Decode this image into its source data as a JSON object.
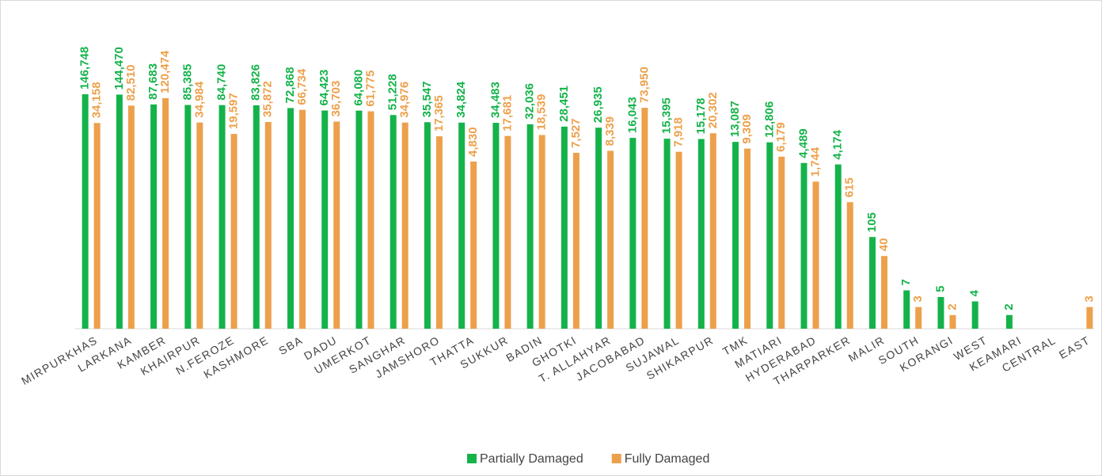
{
  "chart_data": {
    "type": "bar",
    "log_scale": true,
    "ylim": [
      1,
      10000000
    ],
    "legend": "bottom",
    "categories": [
      "MIRPURKHAS",
      "LARKANA",
      "KAMBER",
      "KHAIRPUR",
      "N.FEROZE",
      "KASHMORE",
      "SBA",
      "DADU",
      "UMERKOT",
      "SANGHAR",
      "JAMSHORO",
      "THATTA",
      "SUKKUR",
      "BADIN",
      "GHOTKI",
      "T. ALLAHYAR",
      "JACOBABAD",
      "SUJAWAL",
      "SHIKARPUR",
      "TMK",
      "MATIARI",
      "HYDERABAD",
      "THARPARKER",
      "MALIR",
      "SOUTH",
      "KORANGI",
      "WEST",
      "KEAMARI",
      "CENTRAL",
      "EAST"
    ],
    "series": [
      {
        "name": "Partially Damaged",
        "color": "#14b34a",
        "values": [
          146748,
          144470,
          87683,
          85385,
          84740,
          83826,
          72868,
          64423,
          64080,
          51228,
          35547,
          34824,
          34483,
          32036,
          28451,
          26935,
          16043,
          15395,
          15178,
          13087,
          12806,
          4489,
          4174,
          105,
          7,
          5,
          4,
          2,
          null,
          null
        ],
        "value_labels": [
          "146,748",
          "144,470",
          "87,683",
          "85,385",
          "84,740",
          "83,826",
          "72,868",
          "64,423",
          "64,080",
          "51,228",
          "35,547",
          "34,824",
          "34,483",
          "32,036",
          "28,451",
          "26,935",
          "16,043",
          "15,395",
          "15,178",
          "13,087",
          "12,806",
          "4,489",
          "4,174",
          "105",
          "7",
          "5",
          "4",
          "2",
          null,
          null
        ]
      },
      {
        "name": "Fully Damaged",
        "color": "#eda04b",
        "values": [
          34158,
          82510,
          120474,
          34984,
          19597,
          35872,
          66734,
          36703,
          61775,
          34976,
          17365,
          4830,
          17681,
          18539,
          7527,
          8339,
          73950,
          7918,
          20302,
          9309,
          6179,
          1744,
          615,
          40,
          3,
          2,
          null,
          null,
          null,
          3
        ],
        "value_labels": [
          "34,158",
          "82,510",
          "120,474",
          "34,984",
          "19,597",
          "35,872",
          "66,734",
          "36,703",
          "61,775",
          "34,976",
          "17,365",
          "4,830",
          "17,681",
          "18,539",
          "7,527",
          "8,339",
          "73,950",
          "7,918",
          "20,302",
          "9,309",
          "6,179",
          "1,744",
          "615",
          "40",
          "3",
          "2",
          null,
          null,
          null,
          "3"
        ]
      }
    ]
  }
}
